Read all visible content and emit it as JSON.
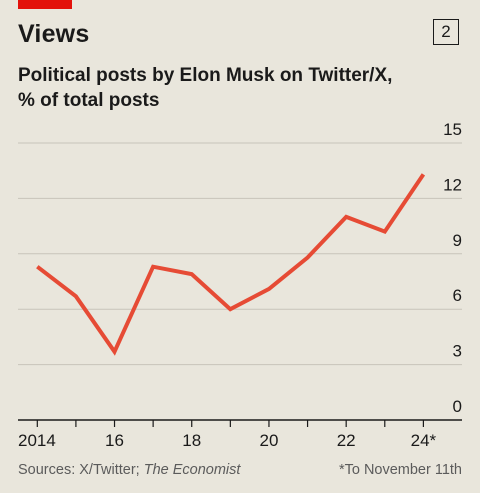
{
  "header": {
    "title": "Views",
    "chart_number": "2"
  },
  "chart_data": {
    "type": "line",
    "title": "Political posts by Elon Musk on Twitter/X,",
    "subtitle": "% of total posts",
    "xlabel": "",
    "ylabel": "",
    "x": [
      2014,
      2015,
      2016,
      2017,
      2018,
      2019,
      2020,
      2021,
      2022,
      2023,
      2024
    ],
    "series": [
      {
        "values": [
          8.3,
          6.7,
          3.7,
          8.3,
          7.9,
          6.0,
          7.1,
          8.8,
          11.0,
          10.2,
          13.3
        ],
        "color": "#e64b35"
      }
    ],
    "xlim": [
      2013.5,
      2025
    ],
    "ylim": [
      0,
      15
    ],
    "y_ticks": [
      0,
      3,
      6,
      9,
      12,
      15
    ],
    "y_tick_labels": [
      "0",
      "3",
      "6",
      "9",
      "12",
      "15"
    ],
    "x_ticks": [
      2014,
      2015,
      2016,
      2017,
      2018,
      2019,
      2020,
      2021,
      2022,
      2023,
      2024
    ],
    "x_tick_labels": [
      {
        "at": 2014,
        "label": "2014"
      },
      {
        "at": 2016,
        "label": "16"
      },
      {
        "at": 2018,
        "label": "18"
      },
      {
        "at": 2020,
        "label": "20"
      },
      {
        "at": 2022,
        "label": "22"
      },
      {
        "at": 2024,
        "label": "24*"
      }
    ],
    "grid": true,
    "y_axis_side": "right"
  },
  "footer": {
    "source_prefix": "Sources: X/Twitter; ",
    "source_italic": "The Economist",
    "note": "*To November 11th"
  },
  "colors": {
    "accent": "#e3120b",
    "line": "#e64b35",
    "background": "#e9e6dc",
    "grid": "#c7c4ba"
  }
}
